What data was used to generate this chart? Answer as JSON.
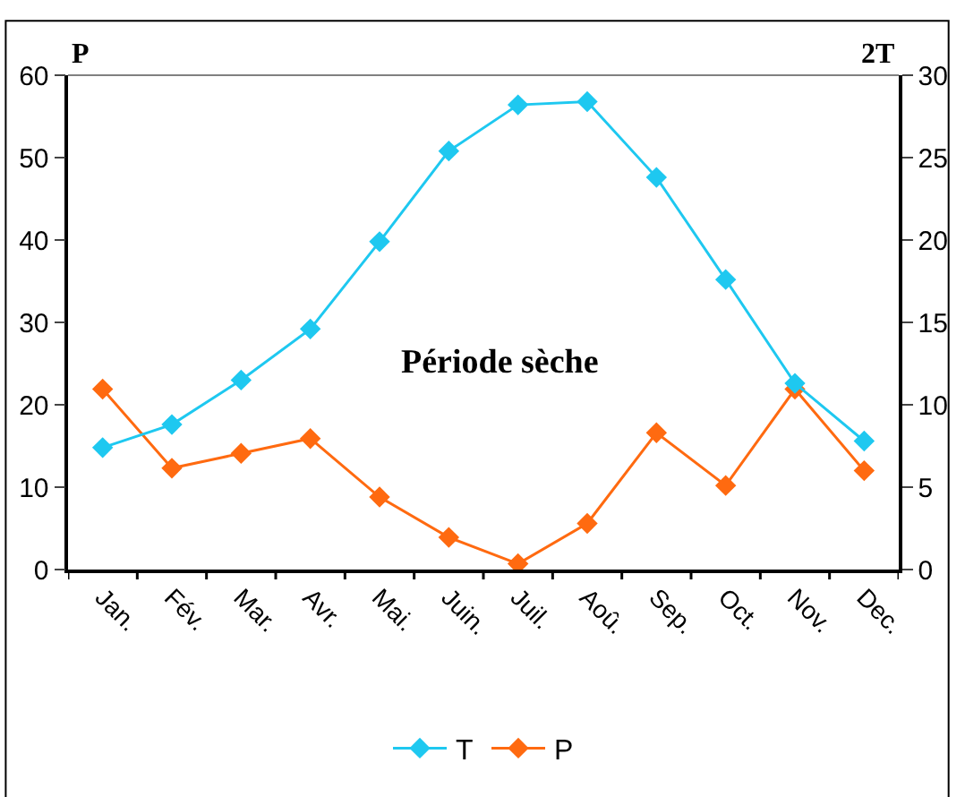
{
  "chart_data": {
    "type": "line",
    "ylabel": "P",
    "y2label": "2T",
    "categories": [
      "Jan.",
      "Fév.",
      "Mar.",
      "Avr.",
      "Mai.",
      "Juin.",
      "Juil.",
      "Aoû.",
      "Sep.",
      "Oct.",
      "Nov.",
      "Dec."
    ],
    "series": [
      {
        "name": "T",
        "color": "#1ec8f0",
        "axis": "y2",
        "values": [
          7.4,
          8.8,
          11.5,
          14.6,
          19.9,
          25.4,
          28.2,
          28.4,
          23.8,
          17.6,
          11.3,
          7.8
        ]
      },
      {
        "name": "P",
        "color": "#ff6a10",
        "values": [
          21.9,
          12.3,
          14.1,
          15.9,
          8.8,
          3.9,
          0.7,
          5.6,
          16.6,
          10.2,
          21.9,
          12.0
        ]
      }
    ],
    "ylim": [
      0,
      60
    ],
    "yticks": [
      0,
      10,
      20,
      30,
      40,
      50,
      60
    ],
    "y2lim": [
      0,
      30
    ],
    "y2ticks": [
      0,
      5,
      10,
      15,
      20,
      25,
      30
    ],
    "annotations": [
      "Période sèche"
    ],
    "marker": "diamond",
    "line_style": "solid",
    "legend": "bottom"
  }
}
